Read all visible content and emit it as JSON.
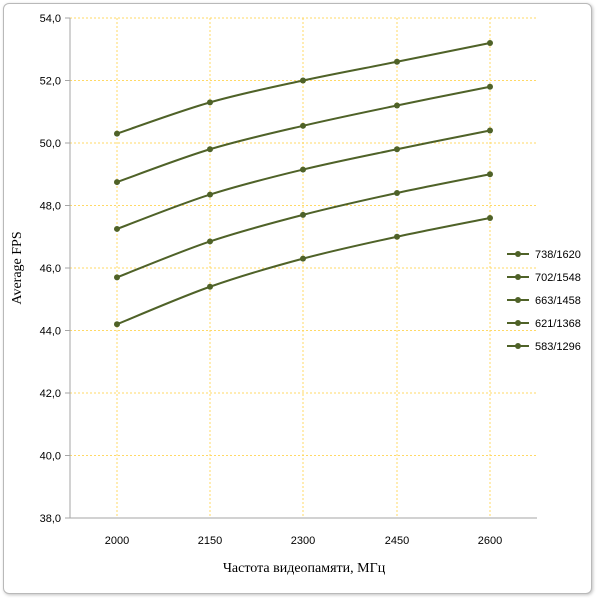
{
  "chart_data": {
    "type": "line",
    "xlabel": "Частота видеопамяти, МГц",
    "ylabel": "Average FPS",
    "categories": [
      "2000",
      "2150",
      "2300",
      "2450",
      "2600"
    ],
    "yticks": [
      "38,0",
      "40,0",
      "42,0",
      "44,0",
      "46,0",
      "48,0",
      "50,0",
      "52,0",
      "54,0"
    ],
    "ylim": [
      38,
      54
    ],
    "grid": true,
    "legend_position": "right",
    "series": [
      {
        "name": "738/1620",
        "values": [
          50.3,
          51.3,
          52.0,
          52.6,
          53.2
        ]
      },
      {
        "name": "702/1548",
        "values": [
          48.75,
          49.8,
          50.55,
          51.2,
          51.8
        ]
      },
      {
        "name": "663/1458",
        "values": [
          47.25,
          48.35,
          49.15,
          49.8,
          50.4
        ]
      },
      {
        "name": "621/1368",
        "values": [
          45.7,
          46.85,
          47.7,
          48.4,
          49.0
        ]
      },
      {
        "name": "583/1296",
        "values": [
          44.2,
          45.4,
          46.3,
          47.0,
          47.6
        ]
      }
    ],
    "colors": {
      "line": "#4f6228",
      "grid": "#ffd966",
      "axis": "#a6a6a6"
    }
  }
}
